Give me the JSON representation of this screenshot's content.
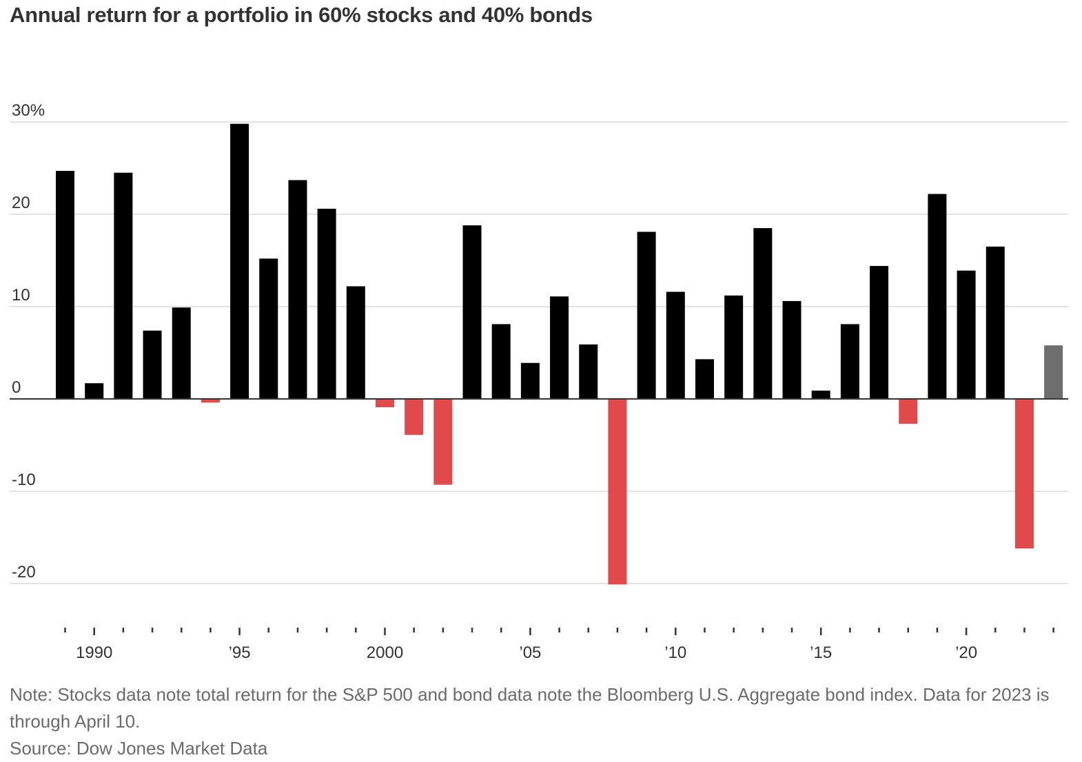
{
  "chart_data": {
    "type": "bar",
    "title": "Annual return for a portfolio in 60% stocks and 40% bonds",
    "xlabel": "",
    "ylabel": "",
    "ylim": [
      -25,
      30
    ],
    "y_ticks": [
      {
        "value": 30,
        "label": "30%"
      },
      {
        "value": 20,
        "label": "20"
      },
      {
        "value": 10,
        "label": "10"
      },
      {
        "value": 0,
        "label": "0"
      },
      {
        "value": -10,
        "label": "-10"
      },
      {
        "value": -20,
        "label": "-20"
      }
    ],
    "x_tick_labels": [
      {
        "year": 1990,
        "label": "1990"
      },
      {
        "year": 1995,
        "label": "’95"
      },
      {
        "year": 2000,
        "label": "2000"
      },
      {
        "year": 2005,
        "label": "’05"
      },
      {
        "year": 2010,
        "label": "’10"
      },
      {
        "year": 2015,
        "label": "’15"
      },
      {
        "year": 2020,
        "label": "’20"
      }
    ],
    "categories": [
      1989,
      1990,
      1991,
      1992,
      1993,
      1994,
      1995,
      1996,
      1997,
      1998,
      1999,
      2000,
      2001,
      2002,
      2003,
      2004,
      2005,
      2006,
      2007,
      2008,
      2009,
      2010,
      2011,
      2012,
      2013,
      2014,
      2015,
      2016,
      2017,
      2018,
      2019,
      2020,
      2021,
      2022,
      2023
    ],
    "values": [
      24.7,
      1.7,
      24.5,
      7.4,
      9.9,
      -0.4,
      29.8,
      15.2,
      23.7,
      20.6,
      12.2,
      -0.9,
      -3.9,
      -9.3,
      18.8,
      8.1,
      3.9,
      11.1,
      5.9,
      -20.1,
      18.1,
      11.6,
      4.3,
      11.2,
      18.5,
      10.6,
      0.9,
      8.1,
      14.4,
      -2.7,
      22.2,
      13.9,
      16.5,
      -16.2,
      5.8
    ],
    "partial_year": 2023,
    "colors": {
      "positive": "#000000",
      "negative": "#e04a4a",
      "partial": "#6e6e6e",
      "grid": "#d9d9d9",
      "zero_line": "#333333",
      "tick": "#333333"
    },
    "grid": true,
    "legend": "none"
  },
  "notes": {
    "note": "Note: Stocks data note total return for the S&P 500 and bond data note the Bloomberg U.S. Aggregate bond index. Data for 2023 is through April 10.",
    "source": "Source: Dow Jones Market Data"
  }
}
